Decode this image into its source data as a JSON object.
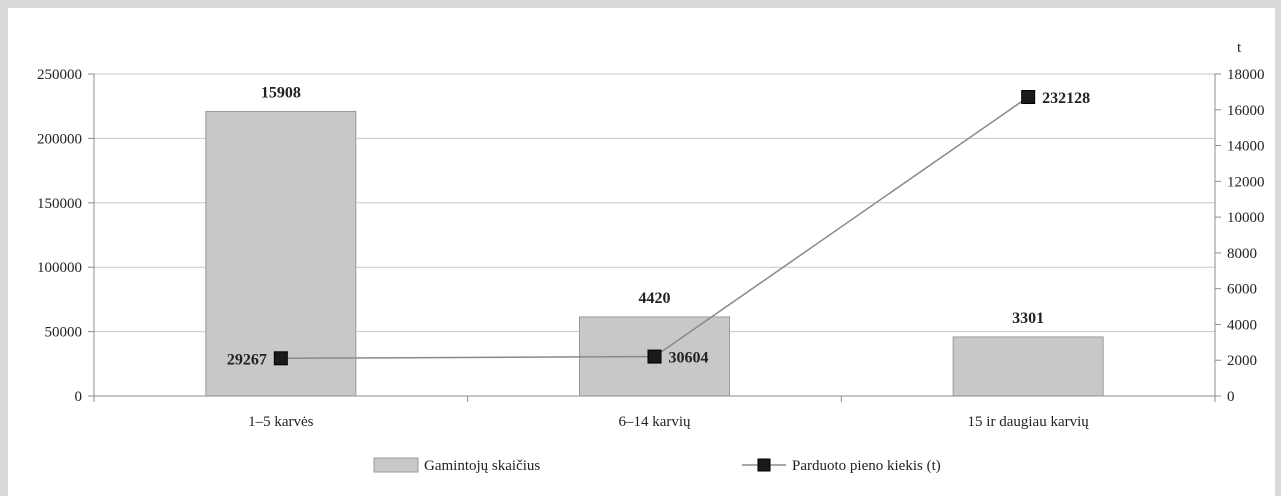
{
  "chart_data": {
    "type": "bar",
    "categories": [
      "1–5 karvės",
      "6–14 karvių",
      "15 ir daugiau karvių"
    ],
    "series": [
      {
        "name": "Gamintojų skaičius",
        "type": "bar",
        "axis": "right",
        "values": [
          15908,
          4420,
          3301
        ],
        "color": "#c8c8c8"
      },
      {
        "name": "Parduoto pieno kiekis (t)",
        "type": "line",
        "axis": "left",
        "values": [
          29267,
          30604,
          232128
        ],
        "color": "#1a1a1a"
      }
    ],
    "y_left": {
      "min": 0,
      "max": 250000,
      "ticks": [
        0,
        50000,
        100000,
        150000,
        200000,
        250000
      ]
    },
    "y_right": {
      "min": 0,
      "max": 18000,
      "ticks": [
        0,
        2000,
        4000,
        6000,
        8000,
        10000,
        12000,
        14000,
        16000,
        18000
      ],
      "unit": "t"
    },
    "grid": true,
    "legend": "bottom"
  }
}
